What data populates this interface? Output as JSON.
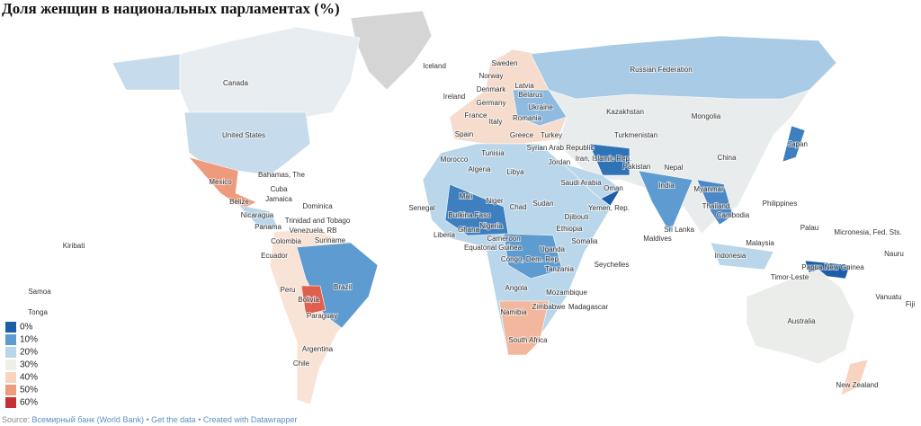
{
  "header": {
    "title": "Доля женщин в национальных парламентах (%)"
  },
  "labels": [
    "Canada",
    "United States",
    "Mexico",
    "Bahamas, The",
    "Cuba",
    "Jamaica",
    "Belize",
    "Dominica",
    "Nicaragua",
    "Trinidad and Tobago",
    "Panama",
    "Venezuela, RB",
    "Colombia",
    "Suriname",
    "Ecuador",
    "Kiribati",
    "Peru",
    "Brazil",
    "Bolivia",
    "Samoa",
    "Tonga",
    "Paraguay",
    "Argentina",
    "Chile",
    "Iceland",
    "Sweden",
    "Norway",
    "Latvia",
    "Denmark",
    "Belarus",
    "Ireland",
    "Germany",
    "Ukraine",
    "France",
    "Romania",
    "Italy",
    "Spain",
    "Greece",
    "Turkey",
    "Tunisia",
    "Syrian Arab Republic",
    "Morocco",
    "Algeria",
    "Libya",
    "Jordan",
    "Russian Federation",
    "Kazakhstan",
    "Mongolia",
    "Turkmenistan",
    "Iran, Islamic Rep.",
    "Pakistan",
    "China",
    "Japan",
    "Nepal",
    "Saudi Arabia",
    "Oman",
    "India",
    "Myanmar",
    "Mali",
    "Niger",
    "Chad",
    "Sudan",
    "Senegal",
    "Yemen, Rep.",
    "Thailand",
    "Cambodia",
    "Philippines",
    "Djibouti",
    "Burkina Faso",
    "Nigeria",
    "Ghana",
    "Ethiopia",
    "Sri Lanka",
    "Liberia",
    "Palau",
    "Micronesia, Fed. Sts.",
    "Cameroon",
    "Somalia",
    "Maldives",
    "Malaysia",
    "Nauru",
    "Equatorial Guinea",
    "Uganda",
    "Indonesia",
    "Congo, Dem. Rep.",
    "Tanzania",
    "Seychelles",
    "Papua New Guinea",
    "Timor-Leste",
    "Angola",
    "Mozambique",
    "Vanuatu",
    "Fiji",
    "Zimbabwe",
    "Madagascar",
    "Namibia",
    "Australia",
    "South Africa",
    "New Zealand"
  ],
  "legend": {
    "items": [
      {
        "label": "0%",
        "color": "#1c5ea8"
      },
      {
        "label": "10%",
        "color": "#5d9bd0"
      },
      {
        "label": "20%",
        "color": "#b9d6ea"
      },
      {
        "label": "30%",
        "color": "#efefe9"
      },
      {
        "label": "40%",
        "color": "#f9d3bd"
      },
      {
        "label": "50%",
        "color": "#ee9a7c"
      },
      {
        "label": "60%",
        "color": "#c52f38"
      }
    ]
  },
  "footer": {
    "source": "Source:",
    "separator": "•",
    "links": [
      "Всемирный банк (World Bank)",
      "Get the data",
      "Created with Datawrapper"
    ]
  }
}
